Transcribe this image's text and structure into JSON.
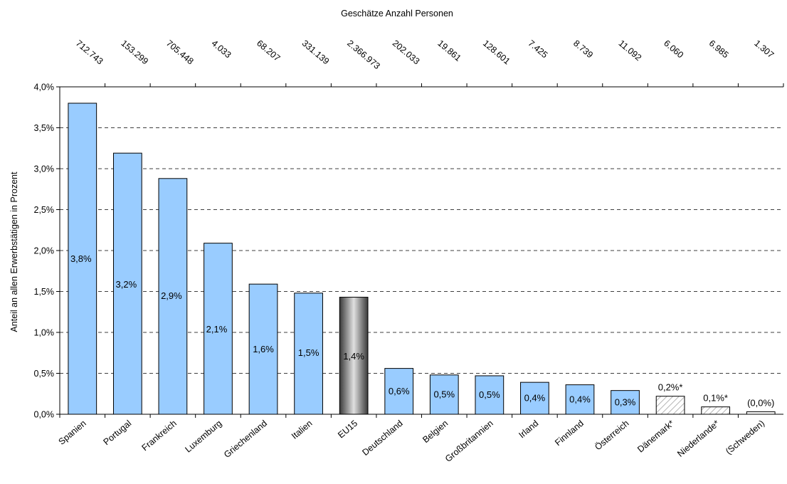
{
  "chart_data": {
    "type": "bar",
    "title": "Geschätze Anzahl Personen",
    "ylabel": "Anteil an allen Erwerbstätigen in Prozent",
    "xlabel": "",
    "ylim": [
      0,
      4.0
    ],
    "yticks": [
      "0,0%",
      "0,5%",
      "1,0%",
      "1,5%",
      "2,0%",
      "2,5%",
      "3,0%",
      "3,5%",
      "4,0%"
    ],
    "grid": "horizontal-dashed",
    "categories": [
      "Spanien",
      "Portugal",
      "Frankreich",
      "Luxemburg",
      "Griechenland",
      "Italien",
      "EU15",
      "Deutschland",
      "Belgien",
      "Großbritannien",
      "Irland",
      "Finnland",
      "Österreich",
      "Dänemark*",
      "Niederlande*",
      "(Schweden)"
    ],
    "values": [
      3.8,
      3.19,
      2.88,
      2.09,
      1.59,
      1.48,
      1.43,
      0.56,
      0.48,
      0.47,
      0.39,
      0.36,
      0.29,
      0.22,
      0.09,
      0.03
    ],
    "value_labels": [
      "3,8%",
      "3,2%",
      "2,9%",
      "2,1%",
      "1,6%",
      "1,5%",
      "1,4%",
      "0,6%",
      "0,5%",
      "0,5%",
      "0,4%",
      "0,4%",
      "0,3%",
      "0,2%*",
      "0,1%*",
      "(0,0%)"
    ],
    "top_values": [
      "712.743",
      "153.299",
      "705.448",
      "4.033",
      "68.207",
      "331.139",
      "2.366.973",
      "202.033",
      "19.861",
      "128.601",
      "7.425",
      "8.739",
      "11.092",
      "6.060",
      "6.985",
      "1.307"
    ],
    "bar_styles": [
      "solid",
      "solid",
      "solid",
      "solid",
      "solid",
      "solid",
      "gradient",
      "solid",
      "solid",
      "solid",
      "solid",
      "solid",
      "solid",
      "hatched",
      "hatched",
      "hollow"
    ],
    "colors": {
      "bar": "#99ccff",
      "eu15_dark": "#3a3a3a",
      "eu15_light": "#e0e0e0",
      "hatch": "#a0a0a0",
      "grid": "#000000"
    }
  }
}
